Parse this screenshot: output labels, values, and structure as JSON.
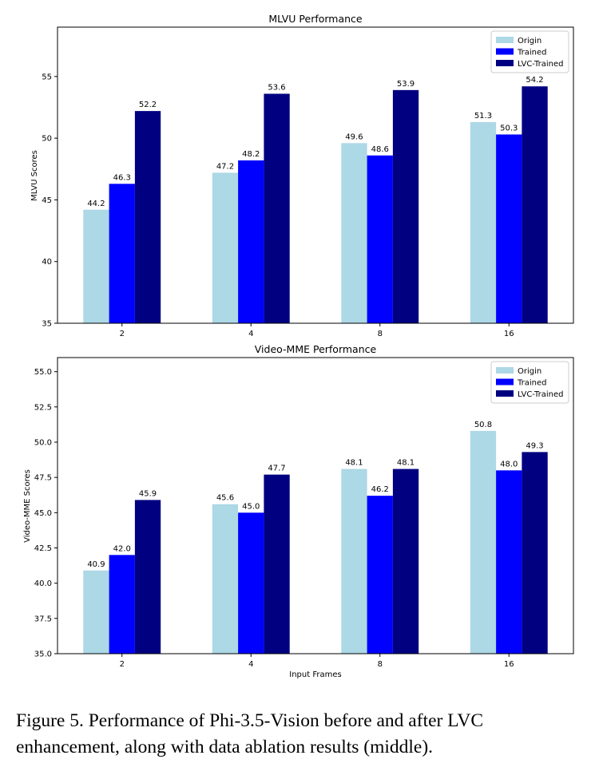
{
  "chart_data": [
    {
      "type": "bar",
      "title": "MLVU Performance",
      "xlabel": "",
      "ylabel": "MLVU Scores",
      "categories": [
        "2",
        "4",
        "8",
        "16"
      ],
      "ylim": [
        35,
        59
      ],
      "yticks": [
        "35",
        "40",
        "45",
        "50",
        "55"
      ],
      "series": [
        {
          "name": "Origin",
          "color": "#add8e6",
          "values": [
            44.2,
            47.2,
            49.6,
            51.3
          ]
        },
        {
          "name": "Trained",
          "color": "#0000ff",
          "values": [
            46.3,
            48.2,
            48.6,
            50.3
          ]
        },
        {
          "name": "LVC-Trained",
          "color": "#000080",
          "values": [
            52.2,
            53.6,
            53.9,
            54.2
          ]
        }
      ],
      "legend_position": "top-right",
      "grid": false
    },
    {
      "type": "bar",
      "title": "Video-MME Performance",
      "xlabel": "Input Frames",
      "ylabel": "Video-MME Scores",
      "categories": [
        "2",
        "4",
        "8",
        "16"
      ],
      "ylim": [
        35,
        56
      ],
      "yticks": [
        "35.0",
        "37.5",
        "40.0",
        "42.5",
        "45.0",
        "47.5",
        "50.0",
        "52.5",
        "55.0"
      ],
      "series": [
        {
          "name": "Origin",
          "color": "#add8e6",
          "values": [
            40.9,
            45.6,
            48.1,
            50.8
          ]
        },
        {
          "name": "Trained",
          "color": "#0000ff",
          "values": [
            42.0,
            45.0,
            46.2,
            48.0
          ]
        },
        {
          "name": "LVC-Trained",
          "color": "#000080",
          "values": [
            45.9,
            47.7,
            48.1,
            49.3
          ]
        }
      ],
      "legend_position": "top-right",
      "grid": false
    }
  ],
  "caption": "Figure 5.  Performance of Phi-3.5-Vision before and after LVC enhancement, along with data ablation results (middle)."
}
